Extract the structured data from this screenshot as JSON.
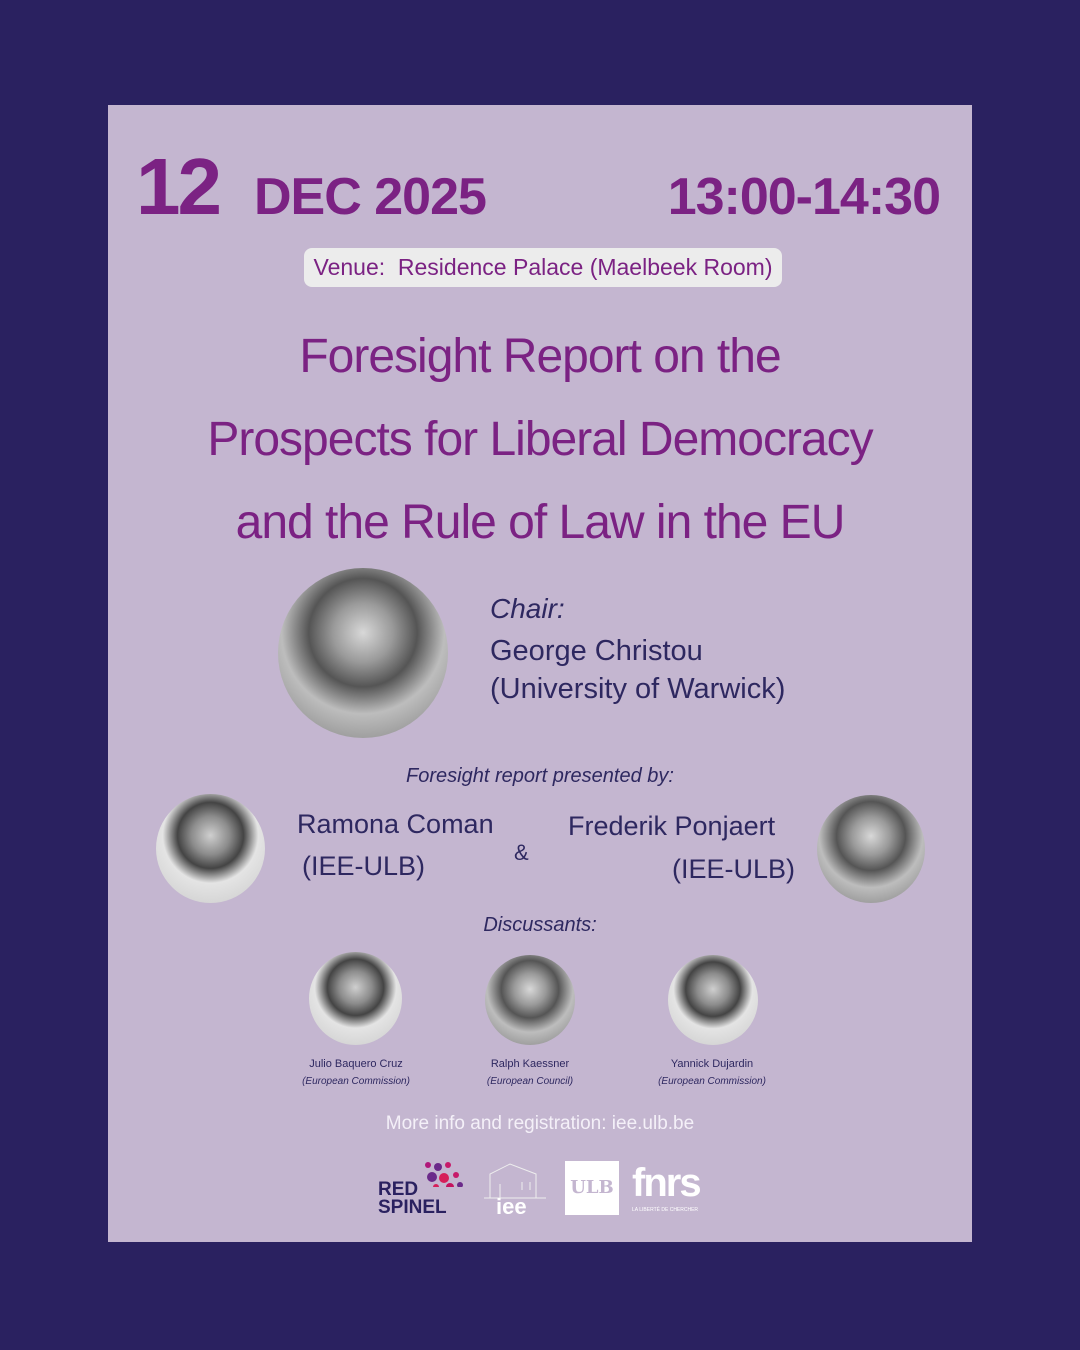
{
  "date": {
    "day": "12",
    "month_year": "DEC 2025",
    "time": "13:00-14:30"
  },
  "venue": "Venue:  Residence Palace (Maelbeek Room)",
  "title": [
    "Foresight Report on the",
    "Prospects for Liberal Democracy",
    "and the Rule of Law in the EU"
  ],
  "chair": {
    "label": "Chair:",
    "name": "George Christou",
    "affiliation": "(University of Warwick)"
  },
  "presenters": {
    "label": "Foresight report presented by:",
    "ampersand": "&",
    "people": [
      {
        "name": "Ramona Coman",
        "affiliation": "(IEE-ULB)"
      },
      {
        "name": "Frederik Ponjaert",
        "affiliation": "(IEE-ULB)"
      }
    ]
  },
  "discussants": {
    "label": "Discussants:",
    "people": [
      {
        "name": "Julio Baquero Cruz",
        "affiliation": "(European Commission)"
      },
      {
        "name": "Ralph Kaessner",
        "affiliation": "(European Council)"
      },
      {
        "name": "Yannick Dujardin",
        "affiliation": "(European Commission)"
      }
    ]
  },
  "more_info": "More info and registration: iee.ulb.be",
  "logos": {
    "redspinel": [
      "RED",
      "SPINEL"
    ],
    "iee": "iee",
    "ulb": "ULB",
    "fnrs": "fnrs",
    "fnrs_tagline": "LA LIBERTÉ DE CHERCHER"
  },
  "colors": {
    "background": "#2a2160",
    "card": "#c4b6d0",
    "accent": "#7b2283",
    "text": "#2e2860"
  }
}
